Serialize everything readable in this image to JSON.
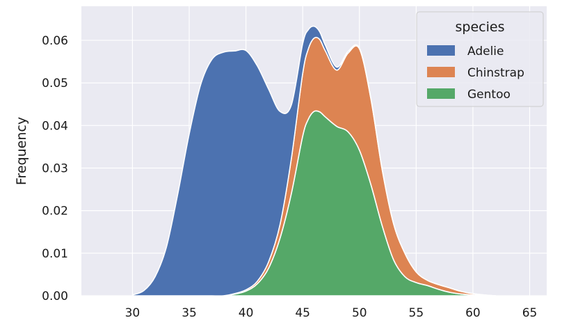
{
  "chart_data": {
    "type": "area",
    "title": "",
    "xlabel": "",
    "ylabel": "Frequency",
    "xlim": [
      25.5,
      66.5
    ],
    "ylim": [
      0,
      0.068
    ],
    "x_ticks": [
      30,
      35,
      40,
      45,
      50,
      55,
      60,
      65
    ],
    "y_ticks": [
      0.0,
      0.01,
      0.02,
      0.03,
      0.04,
      0.05,
      0.06
    ],
    "y_tick_labels": [
      "0.00",
      "0.01",
      "0.02",
      "0.03",
      "0.04",
      "0.05",
      "0.06"
    ],
    "stacked": true,
    "grid": true,
    "legend": {
      "title": "species",
      "position": "top-right"
    },
    "x": [
      30,
      31,
      32,
      33,
      34,
      35,
      36,
      37,
      38,
      39,
      40,
      41,
      42,
      43,
      44,
      45,
      45.5,
      46,
      46.5,
      47,
      48,
      49,
      50,
      51,
      52,
      53,
      54,
      55,
      56,
      57,
      58,
      59,
      60,
      61,
      62
    ],
    "series": [
      {
        "name": "Gentoo",
        "color": "#55a868",
        "values": [
          0,
          0,
          0,
          0,
          0,
          0,
          0,
          0,
          0,
          0.0004,
          0.0011,
          0.0028,
          0.0065,
          0.0135,
          0.024,
          0.0375,
          0.0415,
          0.0433,
          0.0432,
          0.042,
          0.0398,
          0.0385,
          0.0342,
          0.0262,
          0.0165,
          0.0085,
          0.0045,
          0.0031,
          0.0024,
          0.0015,
          0.0008,
          0.0004,
          0.0002,
          0.0001,
          0
        ]
      },
      {
        "name": "Chinstrap",
        "color": "#dd8452",
        "values": [
          0,
          0,
          0,
          0,
          0,
          0,
          0,
          0,
          0,
          0.0001,
          0.0003,
          0.0006,
          0.0015,
          0.0032,
          0.0082,
          0.0147,
          0.0165,
          0.0172,
          0.017,
          0.0155,
          0.0132,
          0.0185,
          0.0238,
          0.0202,
          0.0132,
          0.0085,
          0.0055,
          0.0025,
          0.0012,
          0.0011,
          0.001,
          0.0006,
          0.0003,
          0.0001,
          0
        ]
      },
      {
        "name": "Adelie",
        "color": "#4c72b0",
        "values": [
          0.0002,
          0.0012,
          0.0045,
          0.0115,
          0.024,
          0.038,
          0.0495,
          0.0555,
          0.0572,
          0.057,
          0.0562,
          0.0506,
          0.0405,
          0.0266,
          0.0126,
          0.007,
          0.0045,
          0.0028,
          0.0018,
          0.0013,
          0.0007,
          0.0004,
          0.0002,
          0.0001,
          0,
          0,
          0,
          0,
          0,
          0,
          0,
          0,
          0,
          0,
          0
        ]
      }
    ]
  }
}
